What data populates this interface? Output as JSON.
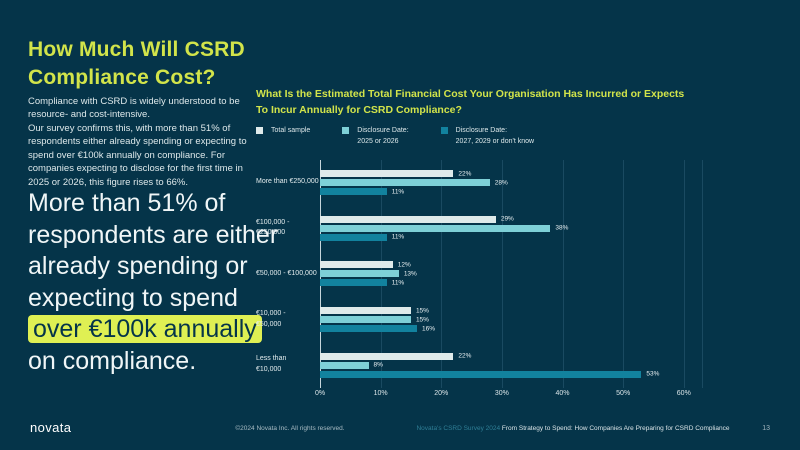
{
  "slide": {
    "title": "How Much Will CSRD Compliance Cost?",
    "intro": "Compliance with CSRD is widely understood to be resource- and cost-intensive.\nOur survey confirms this, with more than 51% of respondents either already spending or expecting to spend over €100k annually on compliance. For companies expecting to disclose for the first time in 2025 or 2026, this figure rises to 66%.",
    "statement_before": "More than 51% of respondents are either already spending or expecting to spend ",
    "statement_highlight": "over €100k annually",
    "statement_after": " on compliance."
  },
  "colors": {
    "background": "#053449",
    "accent_green": "#d2e44a",
    "highlight_bg": "#dff053",
    "gridline": "#1a4a61",
    "series_total": "#dfeaea",
    "series_2025": "#7ed0d7",
    "series_2027": "#12829e"
  },
  "chart_data": {
    "type": "bar",
    "orientation": "horizontal",
    "title": "What Is the Estimated Total Financial Cost Your Organisation Has Incurred or Expects\nTo Incur Annually for CSRD Compliance?",
    "categories": [
      "More than €250,000",
      "€100,000 - €250,000",
      "€50,000 - €100,000",
      "€10,000 -\n€50,000",
      "Less than\n€10,000"
    ],
    "series": [
      {
        "name": "Total sample",
        "legend": "Total sample",
        "color": "#dfeaea",
        "values": [
          22,
          29,
          12,
          15,
          22
        ]
      },
      {
        "name": "Disclosure Date: 2025 or 2026",
        "legend": "Disclosure Date:\n2025 or 2026",
        "color": "#7ed0d7",
        "values": [
          28,
          38,
          13,
          15,
          8
        ]
      },
      {
        "name": "Disclosure Date: 2027, 2029 or don't know",
        "legend": "Disclosure Date:\n2027, 2029 or don't know",
        "color": "#12829e",
        "values": [
          11,
          11,
          11,
          16,
          53
        ]
      }
    ],
    "value_suffix": "%",
    "x_ticks": [
      0,
      10,
      20,
      30,
      40,
      50,
      60
    ],
    "tick_suffix": "%",
    "xlim": [
      0,
      63
    ],
    "grid": true,
    "legend_position": "top"
  },
  "footer": {
    "logo": "novata",
    "copyright": "©2024 Novata Inc. All rights reserved.",
    "source_highlight": "Novata's CSRD Survey 2024",
    "source_rest": " From Strategy to Spend: How Companies Are Preparing for CSRD Compliance",
    "page_number": "13"
  }
}
